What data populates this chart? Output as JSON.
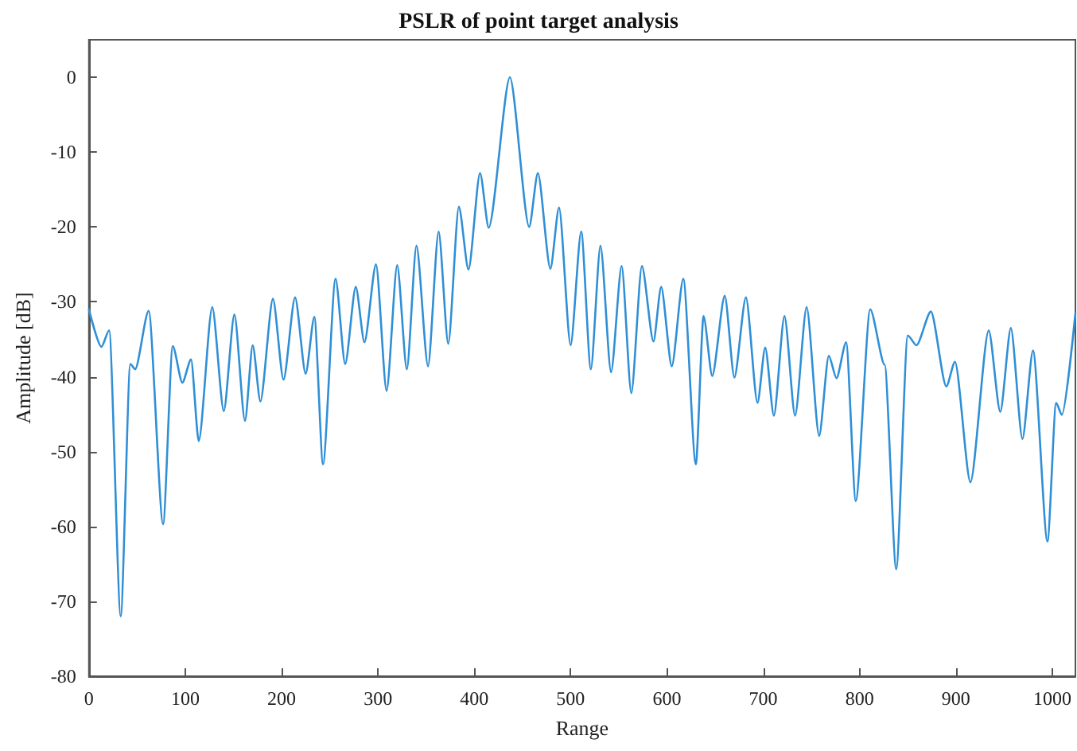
{
  "chart_data": {
    "type": "line",
    "title": "PSLR of point target analysis",
    "xlabel": "Range",
    "ylabel": "Amplitude [dB]",
    "xlim": [
      0,
      1024
    ],
    "xticks": [
      0,
      100,
      200,
      300,
      400,
      500,
      600,
      700,
      800,
      900,
      1000
    ],
    "ylim": [
      -80,
      5
    ],
    "yticks": [
      -80,
      -70,
      -60,
      -50,
      -40,
      -30,
      -20,
      -10,
      0
    ],
    "grid": false,
    "marker": "none",
    "line_style": "solid",
    "series": [
      {
        "color": "#2f8fd6",
        "x": [
          0,
          13,
          21,
          33,
          43,
          48,
          62,
          77,
          87,
          97,
          106,
          114,
          128,
          140,
          151,
          162,
          170,
          178,
          191,
          202,
          214,
          225,
          234,
          243,
          256,
          266,
          277,
          286,
          298,
          309,
          320,
          330,
          340,
          352,
          363,
          373,
          384,
          394,
          406,
          415,
          437,
          457,
          466,
          479,
          488,
          500,
          511,
          521,
          531,
          542,
          553,
          563,
          574,
          586,
          594,
          605,
          617,
          630,
          638,
          647,
          660,
          670,
          682,
          694,
          702,
          711,
          722,
          733,
          745,
          758,
          768,
          776,
          786,
          796,
          811,
          826,
          838,
          850,
          859,
          874,
          890,
          899,
          915,
          934,
          946,
          957,
          969,
          980,
          995,
          1004,
          1010,
          1024
        ],
        "values": [
          -31,
          -36,
          -33.8,
          -72,
          -38.3,
          -39,
          -31.2,
          -59.7,
          -35.9,
          -40.8,
          -37.7,
          -48.6,
          -30.7,
          -44.6,
          -31.7,
          -45.9,
          -35.8,
          -43.3,
          -29.6,
          -40.4,
          -29.4,
          -39.6,
          -32,
          -51.7,
          -26.9,
          -38.3,
          -28,
          -35.4,
          -25,
          -41.9,
          -25.1,
          -39,
          -22.5,
          -38.6,
          -20.6,
          -35.6,
          -17.3,
          -25.7,
          -12.8,
          -20.1,
          0,
          -20,
          -12.8,
          -25.6,
          -17.4,
          -35.8,
          -20.6,
          -39,
          -22.5,
          -39.4,
          -25.2,
          -42.2,
          -25.2,
          -35.3,
          -28,
          -38.6,
          -26.9,
          -51.7,
          -31.9,
          -39.9,
          -29.2,
          -40.1,
          -29.4,
          -43.5,
          -36.1,
          -45.2,
          -31.9,
          -45.2,
          -30.7,
          -47.9,
          -37.2,
          -40.2,
          -35.4,
          -56.6,
          -31,
          -38.4,
          -65.7,
          -34.5,
          -35.8,
          -31.3,
          -41.3,
          -38,
          -54.1,
          -33.8,
          -44.7,
          -33.5,
          -48.3,
          -36.5,
          -62,
          -43.5,
          -45.1,
          -31.5
        ]
      }
    ]
  }
}
